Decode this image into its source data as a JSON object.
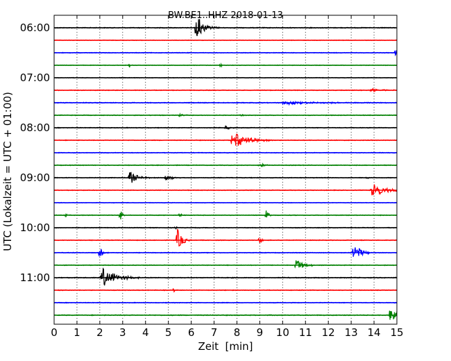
{
  "chart_data": {
    "type": "line",
    "title": "BW.BE1..HHZ 2018-01-13",
    "xlabel": "Zeit  [min]",
    "ylabel": "UTC (Lokalzeit = UTC + 01:00)",
    "xlim": [
      0,
      15
    ],
    "x_ticks": [
      "0",
      "1",
      "2",
      "3",
      "4",
      "5",
      "6",
      "7",
      "8",
      "9",
      "10",
      "11",
      "12",
      "13",
      "14",
      "15"
    ],
    "y_tick_labels": [
      {
        "label": "06:00",
        "row": 0
      },
      {
        "label": "07:00",
        "row": 4
      },
      {
        "label": "08:00",
        "row": 8
      },
      {
        "label": "09:00",
        "row": 12
      },
      {
        "label": "10:00",
        "row": 16
      },
      {
        "label": "10:00",
        "row": 16
      },
      {
        "label": "11:00",
        "row": 20
      }
    ],
    "row_interval_minutes": 15,
    "grid": "vertical-dotted",
    "series": [
      {
        "color": "#000000",
        "noise": 0.6,
        "events": [
          {
            "t": 6.2,
            "amp": 1.4,
            "dur": 0.7
          },
          {
            "t": 6.3,
            "amp": 1.2,
            "dur": 0.2
          }
        ]
      },
      {
        "color": "#ff0000",
        "noise": 0.4,
        "events": []
      },
      {
        "color": "#0000ff",
        "noise": 0.5,
        "events": [
          {
            "t": 14.95,
            "amp": 0.9,
            "dur": 0.1
          }
        ]
      },
      {
        "color": "#008000",
        "noise": 0.4,
        "events": [
          {
            "t": 3.3,
            "amp": 0.3,
            "dur": 0.1
          },
          {
            "t": 7.3,
            "amp": 0.5,
            "dur": 0.05
          }
        ]
      },
      {
        "color": "#000000",
        "noise": 0.4,
        "events": []
      },
      {
        "color": "#ff0000",
        "noise": 0.5,
        "events": [
          {
            "t": 13.9,
            "amp": 0.3,
            "dur": 0.9
          }
        ]
      },
      {
        "color": "#0000ff",
        "noise": 0.6,
        "events": [
          {
            "t": 10.0,
            "amp": 0.3,
            "dur": 3.0
          }
        ]
      },
      {
        "color": "#008000",
        "noise": 0.5,
        "events": [
          {
            "t": 5.5,
            "amp": 0.25,
            "dur": 0.3
          },
          {
            "t": 8.2,
            "amp": 0.25,
            "dur": 0.2
          }
        ]
      },
      {
        "color": "#000000",
        "noise": 0.5,
        "events": [
          {
            "t": 7.5,
            "amp": 0.3,
            "dur": 0.5
          }
        ]
      },
      {
        "color": "#ff0000",
        "noise": 0.5,
        "events": [
          {
            "t": 7.8,
            "amp": 1.4,
            "dur": 1.2
          }
        ]
      },
      {
        "color": "#0000ff",
        "noise": 0.5,
        "events": []
      },
      {
        "color": "#008000",
        "noise": 0.5,
        "events": [
          {
            "t": 9.0,
            "amp": 0.25,
            "dur": 0.5
          }
        ]
      },
      {
        "color": "#000000",
        "noise": 0.5,
        "events": [
          {
            "t": 3.3,
            "amp": 1.1,
            "dur": 0.6
          },
          {
            "t": 4.9,
            "amp": 0.6,
            "dur": 0.5
          },
          {
            "t": 13.7,
            "amp": 0.3,
            "dur": 0.1
          }
        ]
      },
      {
        "color": "#ff0000",
        "noise": 0.5,
        "events": [
          {
            "t": 13.9,
            "amp": 1.2,
            "dur": 1.1
          }
        ]
      },
      {
        "color": "#0000ff",
        "noise": 0.4,
        "events": []
      },
      {
        "color": "#008000",
        "noise": 0.5,
        "events": [
          {
            "t": 0.5,
            "amp": 0.3,
            "dur": 0.1
          },
          {
            "t": 2.9,
            "amp": 1.0,
            "dur": 0.15
          },
          {
            "t": 5.5,
            "amp": 0.5,
            "dur": 0.2
          },
          {
            "t": 9.3,
            "amp": 1.2,
            "dur": 0.15
          }
        ]
      },
      {
        "color": "#000000",
        "noise": 0.5,
        "events": [
          {
            "t": 5.3,
            "amp": 0.3,
            "dur": 0.1
          }
        ]
      },
      {
        "color": "#ff0000",
        "noise": 0.5,
        "events": [
          {
            "t": 5.4,
            "amp": 1.8,
            "dur": 0.4
          },
          {
            "t": 9.0,
            "amp": 0.7,
            "dur": 0.15
          }
        ]
      },
      {
        "color": "#0000ff",
        "noise": 0.5,
        "events": [
          {
            "t": 2.0,
            "amp": 0.8,
            "dur": 0.3
          },
          {
            "t": 13.1,
            "amp": 1.5,
            "dur": 0.6
          }
        ]
      },
      {
        "color": "#008000",
        "noise": 0.5,
        "events": [
          {
            "t": 10.6,
            "amp": 1.0,
            "dur": 0.6
          }
        ]
      },
      {
        "color": "#000000",
        "noise": 0.6,
        "events": [
          {
            "t": 2.1,
            "amp": 1.6,
            "dur": 1.1
          }
        ]
      },
      {
        "color": "#ff0000",
        "noise": 0.5,
        "events": [
          {
            "t": 5.25,
            "amp": 0.5,
            "dur": 0.1
          }
        ]
      },
      {
        "color": "#0000ff",
        "noise": 0.5,
        "events": []
      },
      {
        "color": "#008000",
        "noise": 0.6,
        "events": [
          {
            "t": 14.7,
            "amp": 1.4,
            "dur": 0.7
          }
        ]
      }
    ]
  }
}
